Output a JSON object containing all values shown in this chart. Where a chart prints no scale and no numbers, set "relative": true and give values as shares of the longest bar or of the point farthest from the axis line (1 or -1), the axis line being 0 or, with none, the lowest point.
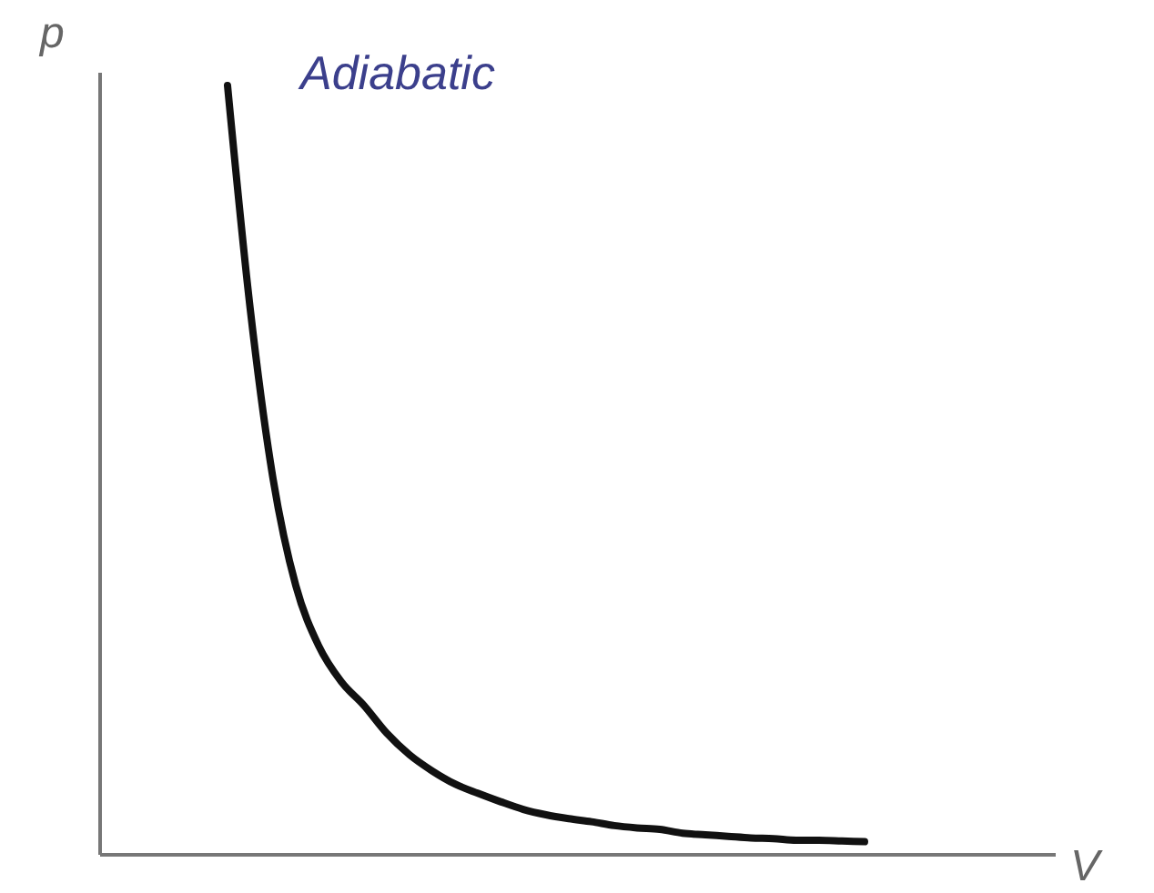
{
  "chart_data": {
    "type": "line",
    "relative": true,
    "title": "Adiabatic",
    "xlabel": "V",
    "ylabel": "p",
    "categories": [
      null,
      null,
      null,
      null,
      null,
      null,
      null,
      null,
      null,
      null,
      null,
      null,
      null,
      null,
      null,
      null,
      null,
      null,
      null,
      null,
      null,
      null,
      null,
      null,
      null,
      null,
      null,
      null,
      null
    ],
    "series": [
      {
        "color": "#111111",
        "values": [
          1,
          0.709,
          0.489,
          0.35,
          0.272,
          0.225,
          0.194,
          0.158,
          0.13,
          0.109,
          0.092,
          0.08,
          0.069,
          0.059,
          0.052,
          0.047,
          0.043,
          0.038,
          0.035,
          0.033,
          0.028,
          0.026,
          0.024,
          0.022,
          0.021,
          0.019,
          0.019,
          0.018,
          0.017
        ]
      }
    ],
    "grid": false,
    "marker": "none",
    "line_style": "solid"
  }
}
